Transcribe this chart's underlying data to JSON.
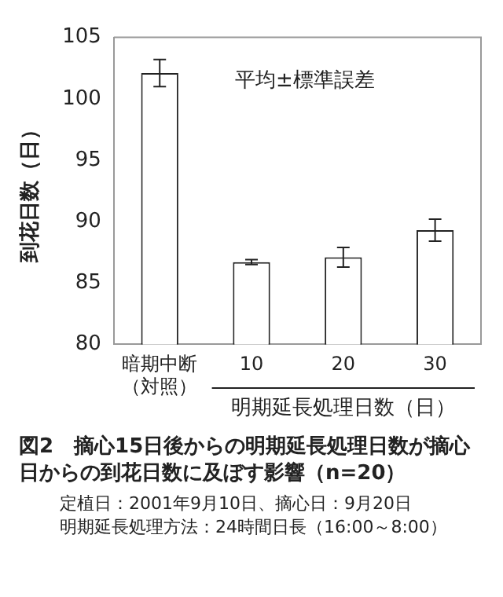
{
  "chart_data": {
    "type": "bar",
    "title": "図2　摘心15日後からの明期延長処理日数が摘心日からの到花日数に及ぼす影響（n=20）",
    "ylabel": "到花日数（日）",
    "xlabel": "明期延長処理日数（日）",
    "categories": [
      "暗期中断（対照）",
      "10",
      "20",
      "30"
    ],
    "values": [
      102.1,
      86.7,
      87.1,
      89.3
    ],
    "errors": [
      1.1,
      0.2,
      0.8,
      0.9
    ],
    "color": "#ffffff",
    "ylim": [
      80,
      105
    ],
    "yticks": [
      80,
      85,
      90,
      95,
      100,
      105
    ],
    "grid": false,
    "legend": false,
    "annotations": [
      "平均±標準誤差",
      "定植日：2001年9月10日、摘心日：9月20日",
      "明期延長処理方法：24時間日長（16:00～8:00）"
    ]
  }
}
